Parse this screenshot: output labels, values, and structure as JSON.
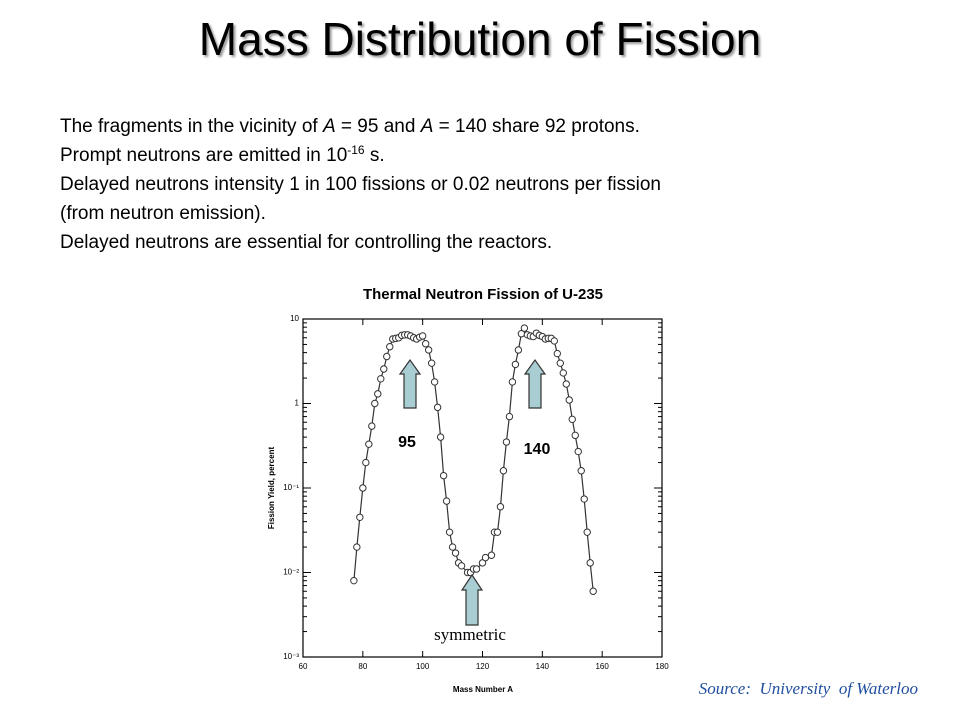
{
  "slide": {
    "title": "Mass Distribution of Fission",
    "lines": [
      [
        "The fragments in the vicinity of ",
        "A",
        " = 95 and ",
        "A",
        " = 140 share 92 protons."
      ],
      [
        "Prompt neutrons are emitted in 10",
        "-16",
        " s."
      ],
      [
        "Delayed neutrons intensity 1 in 100 fissions or 0.02 neutrons per fission"
      ],
      [
        "(from neutron emission)."
      ],
      [
        "Delayed neutrons are essential for controlling the reactors."
      ]
    ],
    "source": "Source:  University  of Waterloo"
  },
  "chart_data": {
    "type": "scatter",
    "title": "Thermal Neutron Fission of U-235",
    "x_label": "Mass Number A",
    "y_label": "Fission Yield, percent",
    "log_y": true,
    "color": "#333333",
    "annotations": [
      "95",
      "140",
      "symmetric"
    ],
    "xlim": [
      60,
      180
    ],
    "xticks": [
      60,
      80,
      100,
      120,
      140,
      160,
      180
    ],
    "ylim": [
      0.001,
      10
    ],
    "yticks": [
      {
        "value": 0.001,
        "label": "10⁻³"
      },
      {
        "value": 0.01,
        "label": "10⁻²"
      },
      {
        "value": 0.1,
        "label": "10⁻¹"
      },
      {
        "value": 1,
        "label": "1"
      },
      {
        "value": 10,
        "label": "10"
      }
    ],
    "series": [
      {
        "name": "U-235",
        "x": [
          77,
          78,
          79,
          80,
          81,
          82,
          83,
          84,
          85,
          86,
          87,
          88,
          89,
          90,
          91,
          92,
          93,
          94,
          95,
          96,
          97,
          98,
          99,
          100,
          101,
          102,
          103,
          104,
          105,
          106,
          107,
          108,
          109,
          110,
          111,
          112,
          113,
          115,
          116,
          117,
          118,
          120,
          121,
          123,
          124,
          125,
          126,
          127,
          128,
          129,
          130,
          131,
          132,
          133,
          134,
          135,
          136,
          137,
          138,
          139,
          140,
          141,
          142,
          143,
          144,
          145,
          146,
          147,
          148,
          149,
          150,
          151,
          152,
          153,
          154,
          155,
          156,
          157
        ],
        "values": [
          0.008,
          0.02,
          0.045,
          0.1,
          0.2,
          0.33,
          0.54,
          1.0,
          1.3,
          1.96,
          2.56,
          3.6,
          4.7,
          5.8,
          5.9,
          6.0,
          6.4,
          6.5,
          6.5,
          6.3,
          6.0,
          5.8,
          6.1,
          6.3,
          5.1,
          4.3,
          3.0,
          1.8,
          0.9,
          0.4,
          0.14,
          0.07,
          0.03,
          0.02,
          0.017,
          0.013,
          0.012,
          0.01,
          0.01,
          0.011,
          0.011,
          0.013,
          0.015,
          0.016,
          0.03,
          0.03,
          0.06,
          0.16,
          0.35,
          0.7,
          1.8,
          2.9,
          4.3,
          6.7,
          7.8,
          6.5,
          6.3,
          6.2,
          6.8,
          6.4,
          6.2,
          5.8,
          5.9,
          5.9,
          5.5,
          3.9,
          3.0,
          2.3,
          1.7,
          1.1,
          0.65,
          0.42,
          0.27,
          0.16,
          0.074,
          0.03,
          0.013,
          0.006
        ]
      }
    ]
  }
}
